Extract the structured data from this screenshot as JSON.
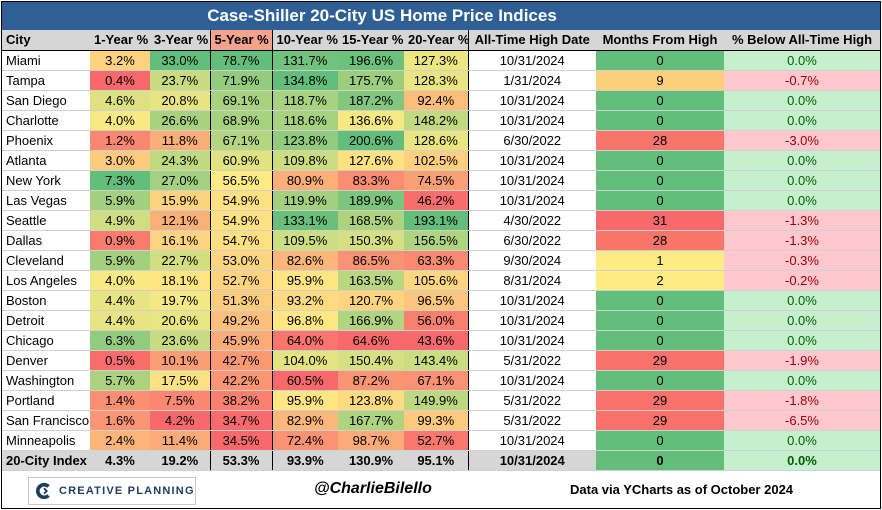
{
  "title": "Case-Shiller 20-City US Home Price Indices",
  "footer": {
    "logo_text": "CREATIVE PLANNING",
    "handle": "@CharlieBilello",
    "source": "Data via YCharts as of October 2024"
  },
  "chart_data": {
    "type": "table",
    "title": "Case-Shiller 20-City US Home Price Indices",
    "columns": [
      "City",
      "1-Year %",
      "3-Year %",
      "5-Year %",
      "10-Year %",
      "15-Year %",
      "20-Year %",
      "All-Time High Date",
      "Months From High",
      "% Below All-Time High"
    ],
    "sorted_by": "5-Year %",
    "rows": [
      [
        "Miami",
        "3.2%",
        "33.0%",
        "78.7%",
        "131.7%",
        "196.6%",
        "127.3%",
        "10/31/2024",
        "0",
        "0.0%"
      ],
      [
        "Tampa",
        "0.4%",
        "23.7%",
        "71.9%",
        "134.8%",
        "175.7%",
        "128.3%",
        "1/31/2024",
        "9",
        "-0.7%"
      ],
      [
        "San Diego",
        "4.6%",
        "20.8%",
        "69.1%",
        "118.7%",
        "187.2%",
        "92.4%",
        "10/31/2024",
        "0",
        "0.0%"
      ],
      [
        "Charlotte",
        "4.0%",
        "26.6%",
        "68.9%",
        "118.6%",
        "136.6%",
        "148.2%",
        "10/31/2024",
        "0",
        "0.0%"
      ],
      [
        "Phoenix",
        "1.2%",
        "11.8%",
        "67.1%",
        "123.8%",
        "200.6%",
        "128.6%",
        "6/30/2022",
        "28",
        "-3.0%"
      ],
      [
        "Atlanta",
        "3.0%",
        "24.3%",
        "60.9%",
        "109.8%",
        "127.6%",
        "102.5%",
        "10/31/2024",
        "0",
        "0.0%"
      ],
      [
        "New York",
        "7.3%",
        "27.0%",
        "56.5%",
        "80.9%",
        "83.3%",
        "74.5%",
        "10/31/2024",
        "0",
        "0.0%"
      ],
      [
        "Las Vegas",
        "5.9%",
        "15.9%",
        "54.9%",
        "119.9%",
        "189.9%",
        "46.2%",
        "10/31/2024",
        "0",
        "0.0%"
      ],
      [
        "Seattle",
        "4.9%",
        "12.1%",
        "54.9%",
        "133.1%",
        "168.5%",
        "193.1%",
        "4/30/2022",
        "31",
        "-1.3%"
      ],
      [
        "Dallas",
        "0.9%",
        "16.1%",
        "54.7%",
        "109.5%",
        "150.3%",
        "156.5%",
        "6/30/2022",
        "28",
        "-1.3%"
      ],
      [
        "Cleveland",
        "5.9%",
        "22.7%",
        "53.0%",
        "82.6%",
        "86.5%",
        "63.3%",
        "9/30/2024",
        "1",
        "-0.3%"
      ],
      [
        "Los Angeles",
        "4.0%",
        "18.1%",
        "52.7%",
        "95.9%",
        "163.5%",
        "105.6%",
        "8/31/2024",
        "2",
        "-0.2%"
      ],
      [
        "Boston",
        "4.4%",
        "19.7%",
        "51.3%",
        "93.2%",
        "120.7%",
        "96.5%",
        "10/31/2024",
        "0",
        "0.0%"
      ],
      [
        "Detroit",
        "4.4%",
        "20.6%",
        "49.2%",
        "96.8%",
        "166.9%",
        "56.0%",
        "10/31/2024",
        "0",
        "0.0%"
      ],
      [
        "Chicago",
        "6.3%",
        "23.6%",
        "45.9%",
        "64.0%",
        "64.6%",
        "43.6%",
        "10/31/2024",
        "0",
        "0.0%"
      ],
      [
        "Denver",
        "0.5%",
        "10.1%",
        "42.7%",
        "104.0%",
        "150.4%",
        "143.4%",
        "5/31/2022",
        "29",
        "-1.9%"
      ],
      [
        "Washington",
        "5.7%",
        "17.5%",
        "42.2%",
        "60.5%",
        "87.2%",
        "67.1%",
        "10/31/2024",
        "0",
        "0.0%"
      ],
      [
        "Portland",
        "1.4%",
        "7.5%",
        "38.2%",
        "95.9%",
        "123.8%",
        "149.9%",
        "5/31/2022",
        "29",
        "-1.8%"
      ],
      [
        "San Francisco",
        "1.6%",
        "4.2%",
        "34.7%",
        "82.9%",
        "167.7%",
        "99.3%",
        "5/31/2022",
        "29",
        "-6.5%"
      ],
      [
        "Minneapolis",
        "2.4%",
        "11.4%",
        "34.5%",
        "72.4%",
        "98.7%",
        "52.7%",
        "10/31/2024",
        "0",
        "0.0%"
      ]
    ],
    "total_row": [
      "20-City Index",
      "4.3%",
      "19.2%",
      "53.3%",
      "93.9%",
      "130.9%",
      "95.1%",
      "10/31/2024",
      "0",
      "0.0%"
    ],
    "colors": {
      "title_bar": "#2f5f95",
      "high": "#63be7b",
      "mid": "#ffeb84",
      "low": "#f8696b",
      "below_high_zero": "#c6efce",
      "below_high_neg": "#ffc7ce",
      "below_high_neg_text": "#9c0006",
      "below_high_zero_text": "#006100"
    }
  }
}
